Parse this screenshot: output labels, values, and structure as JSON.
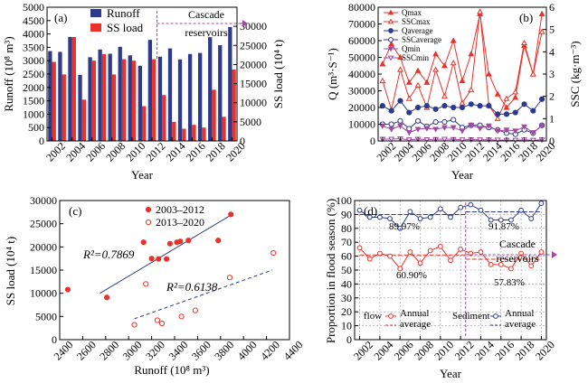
{
  "chart_data": [
    {
      "id": "a",
      "type": "bar",
      "panel_label": "(a)",
      "xlabel": "Year",
      "ylabel_left": "Runoff (10⁸ m³)",
      "ylabel_right": "SS load (10⁴ t)",
      "ylim_left": [
        0,
        5000
      ],
      "ylim_right": [
        0,
        35000
      ],
      "yticks_left": [
        0,
        500,
        1000,
        1500,
        2000,
        2500,
        3000,
        3500,
        4000,
        4500,
        5000
      ],
      "yticks_right": [
        0,
        5000,
        10000,
        15000,
        20000,
        25000,
        30000
      ],
      "x_ticks": [
        2002,
        2004,
        2006,
        2008,
        2010,
        2012,
        2014,
        2016,
        2018,
        2020
      ],
      "categories": [
        2002,
        2003,
        2004,
        2005,
        2006,
        2007,
        2008,
        2009,
        2010,
        2011,
        2012,
        2013,
        2014,
        2015,
        2016,
        2017,
        2018,
        2019,
        2020
      ],
      "annotation": "Cascade reservoirs",
      "annotation_from": 2013,
      "series": [
        {
          "name": "Runoff",
          "axis": "left",
          "color": "#2e3a8c",
          "values": [
            3360,
            3330,
            3890,
            2470,
            3130,
            3420,
            3260,
            3520,
            3200,
            2810,
            3780,
            3150,
            3460,
            3050,
            3250,
            3290,
            3880,
            3580,
            4260
          ]
        },
        {
          "name": "SS load",
          "axis": "right",
          "color": "#e8322b",
          "values": [
            20700,
            17400,
            27200,
            10800,
            21000,
            22700,
            17400,
            21400,
            21000,
            9100,
            21400,
            12000,
            5000,
            3200,
            4200,
            3500,
            13400,
            6300,
            18700
          ]
        }
      ]
    },
    {
      "id": "b",
      "type": "line",
      "panel_label": "(b)",
      "xlabel": "Year",
      "ylabel_left": "Q (m³·S⁻¹)",
      "ylabel_right": "SSC (kg·m⁻³)",
      "ylim_left": [
        0,
        80000
      ],
      "ylim_right": [
        0,
        6
      ],
      "yticks_left": [
        0,
        10000,
        20000,
        30000,
        40000,
        50000,
        60000,
        70000,
        80000
      ],
      "yticks_right": [
        0,
        1,
        2,
        3,
        4,
        5,
        6
      ],
      "x_ticks": [
        2002,
        2004,
        2006,
        2008,
        2010,
        2012,
        2014,
        2016,
        2018,
        2020
      ],
      "x": [
        2002,
        2003,
        2004,
        2005,
        2006,
        2007,
        2008,
        2009,
        2010,
        2011,
        2012,
        2013,
        2014,
        2015,
        2016,
        2017,
        2018,
        2019,
        2020
      ],
      "series": [
        {
          "name": "Qmax",
          "axis": "left",
          "color": "#e8322b",
          "marker": "filled-triangle",
          "values": [
            46000,
            58000,
            50000,
            35000,
            42000,
            35000,
            52000,
            45000,
            60000,
            36000,
            52000,
            76000,
            40000,
            28000,
            20000,
            26000,
            57000,
            40000,
            76000
          ]
        },
        {
          "name": "SSCmax",
          "axis": "right",
          "color": "#e8322b",
          "marker": "open-triangle",
          "values": [
            2.7,
            1.4,
            3.2,
            1.9,
            2.5,
            1.5,
            3.2,
            2.0,
            3.5,
            1.7,
            2.3,
            5.8,
            1.6,
            1.0,
            1.9,
            2.2,
            4.4,
            3.0,
            4.9
          ]
        },
        {
          "name": "Qaverage",
          "axis": "left",
          "color": "#2e3a8c",
          "marker": "filled-circle",
          "values": [
            21000,
            18000,
            24000,
            17000,
            20000,
            21000,
            19000,
            21000,
            20000,
            20000,
            22000,
            21000,
            21000,
            16000,
            16000,
            17000,
            22000,
            18000,
            25000
          ]
        },
        {
          "name": "SSCaverage",
          "axis": "right",
          "color": "#2e3a8c",
          "marker": "open-circle",
          "values": [
            0.75,
            0.75,
            0.9,
            0.55,
            0.9,
            0.65,
            0.85,
            0.85,
            0.95,
            0.6,
            0.7,
            0.7,
            0.6,
            0.5,
            0.35,
            0.3,
            0.5,
            0.35,
            0.7
          ]
        },
        {
          "name": "Qmin",
          "axis": "left",
          "color": "#a04aa0",
          "marker": "filled-triangle-down",
          "values": [
            9000,
            7000,
            9000,
            5000,
            7000,
            7500,
            7000,
            8000,
            8000,
            6000,
            9500,
            7500,
            9000,
            6000,
            6500,
            6000,
            8500,
            5000,
            9000
          ]
        },
        {
          "name": "SSCmin",
          "axis": "right",
          "color": "#a04aa0",
          "marker": "open-triangle-down",
          "values": [
            0.08,
            0.08,
            0.1,
            0.05,
            0.08,
            0.06,
            0.07,
            0.08,
            0.07,
            0.05,
            0.06,
            0.05,
            0.05,
            0.04,
            0.03,
            0.03,
            0.05,
            0.03,
            0.05
          ]
        }
      ]
    },
    {
      "id": "c",
      "type": "scatter",
      "panel_label": "(c)",
      "xlabel": "Runoff (10⁸ m³)",
      "ylabel": "SS load (10⁴ t)",
      "xlim": [
        2400,
        4400
      ],
      "ylim": [
        0,
        30000
      ],
      "xticks": [
        2400,
        2600,
        2800,
        3000,
        3200,
        3400,
        3600,
        3800,
        4000,
        4200,
        4400
      ],
      "yticks": [
        0,
        5000,
        10000,
        15000,
        20000,
        25000,
        30000
      ],
      "series": [
        {
          "name": "2003–2012",
          "color": "#e8322b",
          "marker": "filled-circle",
          "points": [
            [
              2470,
              10800
            ],
            [
              2810,
              9100
            ],
            [
              3130,
              21000
            ],
            [
              3200,
              17500
            ],
            [
              3260,
              17400
            ],
            [
              3330,
              17400
            ],
            [
              3360,
              20700
            ],
            [
              3420,
              21000
            ],
            [
              3450,
              21200
            ],
            [
              3520,
              21400
            ],
            [
              3780,
              21400
            ],
            [
              3890,
              27000
            ]
          ],
          "fit_line": [
            [
              2750,
              10000
            ],
            [
              3900,
              27000
            ]
          ],
          "r2_label": "R²=0.7869"
        },
        {
          "name": "2013–2020",
          "color": "#e8322b",
          "marker": "open-circle",
          "points": [
            [
              3050,
              3200
            ],
            [
              3150,
              12000
            ],
            [
              3250,
              4200
            ],
            [
              3290,
              3500
            ],
            [
              3460,
              5000
            ],
            [
              3580,
              6300
            ],
            [
              3880,
              13400
            ],
            [
              4260,
              18700
            ]
          ],
          "fit_line": [
            [
              3050,
              4500
            ],
            [
              4250,
              15000
            ]
          ],
          "r2_label": "R²=0.6138"
        }
      ]
    },
    {
      "id": "d",
      "type": "line",
      "panel_label": "(d)",
      "xlabel": "Year",
      "ylabel": "Proportion in flood season (%)",
      "ylim": [
        0,
        100
      ],
      "yticks": [
        0,
        10,
        20,
        30,
        40,
        50,
        60,
        70,
        80,
        90,
        100
      ],
      "x_ticks": [
        2002,
        2004,
        2006,
        2008,
        2010,
        2012,
        2014,
        2016,
        2018,
        2020
      ],
      "x": [
        2002,
        2003,
        2004,
        2005,
        2006,
        2007,
        2008,
        2009,
        2010,
        2011,
        2012,
        2013,
        2014,
        2015,
        2016,
        2017,
        2018,
        2019,
        2020
      ],
      "annotation": "Cascade reservoirs",
      "annotation_from": 2013,
      "series": [
        {
          "name": "flow",
          "color": "#e8322b",
          "values": [
            66,
            58,
            62,
            60,
            51,
            63,
            55,
            64,
            67,
            57,
            65,
            62,
            63,
            54,
            54,
            51,
            62,
            53,
            63
          ],
          "avg_2003_2012": 60.9,
          "avg_2013_2020": 57.83
        },
        {
          "name": "Sediment",
          "color": "#2e3a8c",
          "values": [
            93,
            88,
            88,
            87,
            80,
            92,
            87,
            88,
            94,
            88,
            95,
            97,
            93,
            86,
            86,
            86,
            93,
            87,
            98
          ],
          "avg_2003_2012": 89.97,
          "avg_2013_2020": 91.87
        }
      ],
      "avg_labels": {
        "sed_early": "89.97%",
        "sed_late": "91.87%",
        "flow_early": "60.90%",
        "flow_late": "57.83%"
      },
      "legend": {
        "flow": "flow",
        "sediment": "Sediment",
        "annual": "Annual",
        "average": "average"
      }
    }
  ]
}
